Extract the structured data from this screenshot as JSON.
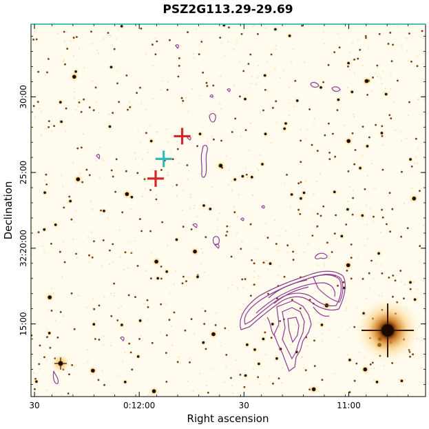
{
  "figure": {
    "title": "PSZ2G113.29-29.69",
    "xlabel": "Right ascension",
    "ylabel": "Declination",
    "xticks": [
      {
        "label": "30",
        "ra_s": 1830
      },
      {
        "label": "0:12:00",
        "ra_s": 1800
      },
      {
        "label": "30",
        "ra_s": 1770
      },
      {
        "label": "11:00",
        "ra_s": 1740
      }
    ],
    "yticks": [
      {
        "label": "30:00",
        "dec_m": 30
      },
      {
        "label": "25:00",
        "dec_m": 25
      },
      {
        "label": "32:20:00",
        "dec_m": 20
      },
      {
        "label": "15:00",
        "dec_m": 15
      }
    ],
    "ra_range_s": [
      1831,
      1718
    ],
    "dec_range_m": [
      34.8,
      10.2
    ],
    "colors": {
      "background": "#fffbee",
      "star": "#1a0a02",
      "halo": "#f5a623",
      "contour": "#8b3a96",
      "cross_red": "#d62728",
      "cross_cyan": "#35b9b3",
      "top_border": "#45c1b5"
    },
    "markers": [
      {
        "type": "red-cross",
        "ra_s": 1787.7,
        "dec_m": 27.4
      },
      {
        "type": "red-cross",
        "ra_s": 1795.3,
        "dec_m": 24.6
      },
      {
        "type": "cyan-cross",
        "ra_s": 1793.0,
        "dec_m": 25.9
      }
    ]
  }
}
